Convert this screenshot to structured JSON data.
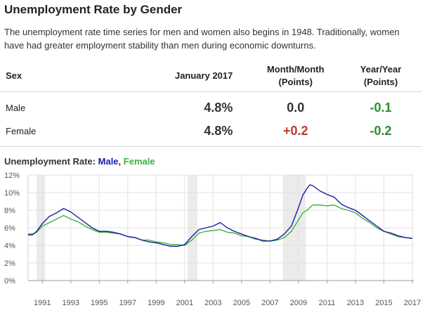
{
  "header": {
    "title": "Unemployment Rate by Gender",
    "description": "The unemployment rate time series for men and women also begins in 1948. Traditionally, women have had greater employment stability than men during economic downturns."
  },
  "table": {
    "headers": {
      "sex": "Sex",
      "current": "January 2017",
      "month_line1": "Month/Month",
      "month_line2": "(Points)",
      "year_line1": "Year/Year",
      "year_line2": "(Points)"
    },
    "rows": [
      {
        "sex": "Male",
        "current": "4.8%",
        "month": "0.0",
        "year": "-0.1"
      },
      {
        "sex": "Female",
        "current": "4.8%",
        "month": "+0.2",
        "year": "-0.2"
      }
    ]
  },
  "chart_title": {
    "prefix": "Unemployment Rate: ",
    "male": "Male",
    "separator": ", ",
    "female": "Female"
  },
  "colors": {
    "male": "#1a1aa8",
    "female": "#3cb23c",
    "positive": "#c0392b",
    "negative": "#2e8b2e",
    "recession": "#ebebeb",
    "grid": "#e2e2e2"
  },
  "chart_data": {
    "type": "line",
    "title": "Unemployment Rate: Male, Female",
    "xlabel": "",
    "ylabel": "",
    "xlim": [
      1990.0,
      2017.1
    ],
    "ylim": [
      0,
      12
    ],
    "yticks": [
      0,
      2,
      4,
      6,
      8,
      10,
      12
    ],
    "ytick_labels": [
      "0%",
      "2%",
      "4%",
      "6%",
      "8%",
      "10%",
      "12%"
    ],
    "xticks": [
      1991,
      1993,
      1995,
      1997,
      1999,
      2001,
      2003,
      2005,
      2007,
      2009,
      2011,
      2013,
      2015,
      2017
    ],
    "grid": true,
    "recessions": [
      [
        1990.6,
        1991.2
      ],
      [
        2001.2,
        2001.9
      ],
      [
        2007.9,
        2009.5
      ]
    ],
    "series": [
      {
        "name": "Male",
        "x": [
          1990.0,
          1990.3,
          1990.6,
          1991.0,
          1991.5,
          1992.0,
          1992.5,
          1993.0,
          1993.5,
          1994.0,
          1994.5,
          1995.0,
          1995.5,
          1996.0,
          1996.5,
          1997.0,
          1997.5,
          1998.0,
          1998.5,
          1999.0,
          1999.5,
          2000.0,
          2000.5,
          2001.0,
          2001.5,
          2002.0,
          2002.5,
          2003.0,
          2003.5,
          2004.0,
          2004.5,
          2005.0,
          2005.5,
          2006.0,
          2006.5,
          2007.0,
          2007.5,
          2008.0,
          2008.5,
          2009.0,
          2009.3,
          2009.6,
          2009.8,
          2010.0,
          2010.5,
          2011.0,
          2011.5,
          2012.0,
          2012.5,
          2013.0,
          2013.5,
          2014.0,
          2014.5,
          2015.0,
          2015.5,
          2016.0,
          2016.5,
          2017.0
        ],
        "values": [
          5.2,
          5.2,
          5.6,
          6.5,
          7.3,
          7.7,
          8.2,
          7.8,
          7.2,
          6.6,
          6.0,
          5.6,
          5.6,
          5.5,
          5.3,
          5.0,
          4.9,
          4.6,
          4.4,
          4.3,
          4.1,
          3.9,
          3.9,
          4.1,
          5.0,
          5.8,
          6.0,
          6.2,
          6.6,
          6.0,
          5.6,
          5.3,
          5.0,
          4.8,
          4.5,
          4.5,
          4.7,
          5.3,
          6.2,
          8.3,
          9.7,
          10.5,
          10.9,
          10.8,
          10.2,
          9.8,
          9.5,
          8.7,
          8.3,
          8.0,
          7.4,
          6.8,
          6.2,
          5.6,
          5.4,
          5.1,
          4.9,
          4.8
        ]
      },
      {
        "name": "Female",
        "x": [
          1990.0,
          1990.3,
          1990.6,
          1991.0,
          1991.5,
          1992.0,
          1992.5,
          1993.0,
          1993.5,
          1994.0,
          1994.5,
          1995.0,
          1995.5,
          1996.0,
          1996.5,
          1997.0,
          1997.5,
          1998.0,
          1998.5,
          1999.0,
          1999.5,
          2000.0,
          2000.5,
          2001.0,
          2001.5,
          2002.0,
          2002.5,
          2003.0,
          2003.5,
          2004.0,
          2004.5,
          2005.0,
          2005.5,
          2006.0,
          2006.5,
          2007.0,
          2007.5,
          2008.0,
          2008.5,
          2009.0,
          2009.3,
          2009.6,
          2009.8,
          2010.0,
          2010.5,
          2011.0,
          2011.5,
          2012.0,
          2012.5,
          2013.0,
          2013.5,
          2014.0,
          2014.5,
          2015.0,
          2015.5,
          2016.0,
          2016.5,
          2017.0
        ],
        "values": [
          5.3,
          5.3,
          5.5,
          6.2,
          6.6,
          7.0,
          7.4,
          7.0,
          6.7,
          6.2,
          5.8,
          5.5,
          5.5,
          5.4,
          5.3,
          5.0,
          4.9,
          4.6,
          4.6,
          4.4,
          4.3,
          4.1,
          4.1,
          4.0,
          4.6,
          5.4,
          5.6,
          5.7,
          5.8,
          5.5,
          5.4,
          5.1,
          5.0,
          4.7,
          4.6,
          4.5,
          4.6,
          4.9,
          5.6,
          6.9,
          7.7,
          8.0,
          8.3,
          8.6,
          8.6,
          8.5,
          8.6,
          8.2,
          8.0,
          7.7,
          7.1,
          6.6,
          6.0,
          5.6,
          5.3,
          5.0,
          4.9,
          4.8
        ]
      }
    ]
  }
}
